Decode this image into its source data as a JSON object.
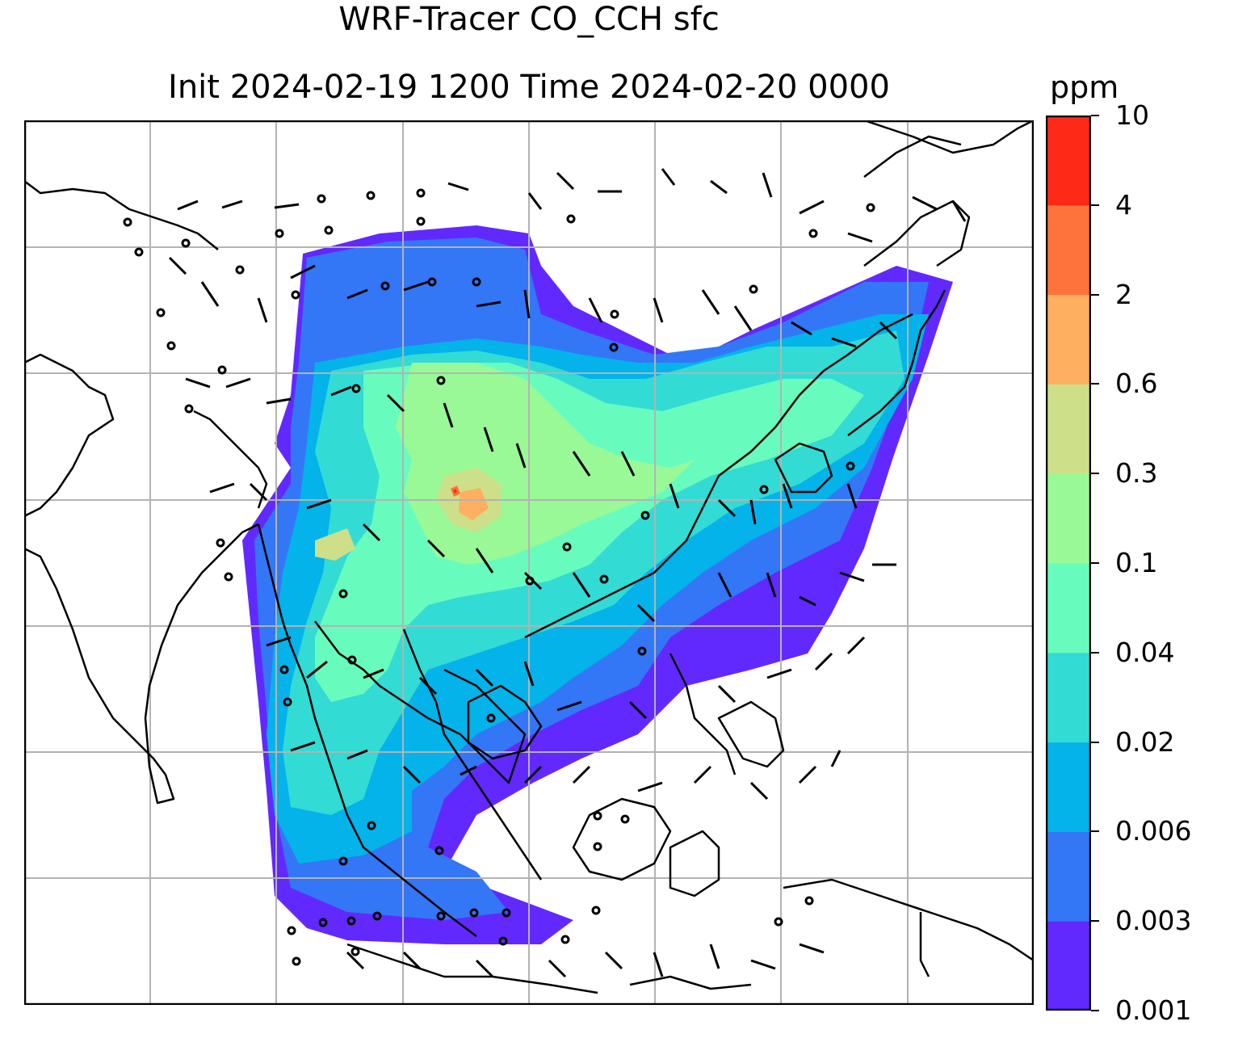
{
  "title_line1": "WRF-Tracer CO_CCH sfc",
  "title_line2": "Init 2024-02-19 1200 Time 2024-02-20 0000",
  "colorbar": {
    "unit": "ppm",
    "levels": [
      "0.001",
      "0.003",
      "0.006",
      "0.02",
      "0.04",
      "0.1",
      "0.3",
      "0.6",
      "2",
      "4",
      "10"
    ],
    "colors": [
      "#6229ff",
      "#3377f7",
      "#03b3e9",
      "#33dbd5",
      "#67fcbe",
      "#99f997",
      "#cddf88",
      "#feaf60",
      "#fe733b",
      "#fe2a17"
    ]
  },
  "map": {
    "field": "CO_CCH surface concentration (filled contours)",
    "overlay": "wind barbs",
    "gridlines": true
  }
}
